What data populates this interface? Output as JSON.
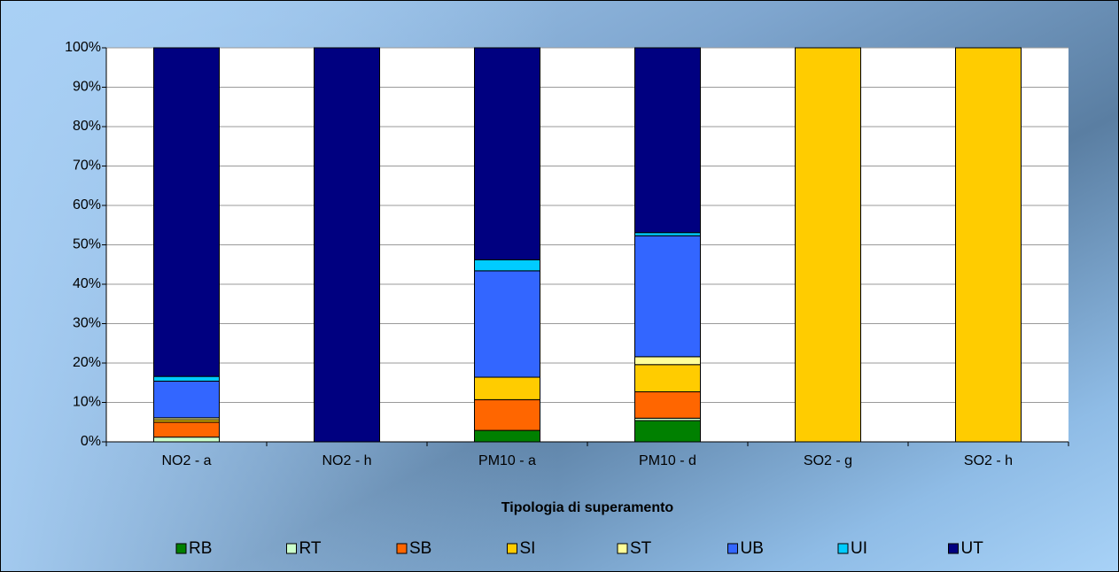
{
  "chart_data": {
    "type": "stacked_bar",
    "xlabel": "Tipologia di superamento",
    "categories": [
      "NO2 - a",
      "NO2 - h",
      "PM10 - a",
      "PM10 - d",
      "SO2 - g",
      "SO2 - h"
    ],
    "series": [
      {
        "name": "RB",
        "color": "#008000",
        "values": [
          0,
          0,
          2.9,
          5.4,
          0,
          0
        ]
      },
      {
        "name": "RT",
        "color": "#CCFFCC",
        "values": [
          1.2,
          0,
          0,
          0.6,
          0,
          0
        ]
      },
      {
        "name": "SB",
        "color": "#FF6600",
        "values": [
          3.8,
          0,
          7.8,
          6.7,
          0,
          0
        ]
      },
      {
        "name": "SI",
        "color": "#FFCC00",
        "values": [
          0.6,
          0,
          5.7,
          6.9,
          100,
          100
        ]
      },
      {
        "name": "ST",
        "color": "#FFFF99",
        "values": [
          0.5,
          0,
          0,
          2.0,
          0,
          0
        ]
      },
      {
        "name": "UB",
        "color": "#3366FF",
        "values": [
          9.3,
          0,
          27.0,
          30.7,
          0,
          0
        ]
      },
      {
        "name": "UI",
        "color": "#00CCFF",
        "values": [
          1.2,
          0,
          2.8,
          0.8,
          0,
          0
        ]
      },
      {
        "name": "UT",
        "color": "#000080",
        "values": [
          83.4,
          100,
          53.8,
          46.9,
          0,
          0
        ]
      }
    ],
    "ylim": [
      0,
      100
    ],
    "yticks": [
      {
        "value": 0,
        "label": "0%"
      },
      {
        "value": 10,
        "label": "10%"
      },
      {
        "value": 20,
        "label": "20%"
      },
      {
        "value": 30,
        "label": "30%"
      },
      {
        "value": 40,
        "label": "40%"
      },
      {
        "value": 50,
        "label": "50%"
      },
      {
        "value": 60,
        "label": "60%"
      },
      {
        "value": 70,
        "label": "70%"
      },
      {
        "value": 80,
        "label": "80%"
      },
      {
        "value": 90,
        "label": "90%"
      },
      {
        "value": 100,
        "label": "100%"
      }
    ],
    "grid": true,
    "legend": "bottom"
  }
}
